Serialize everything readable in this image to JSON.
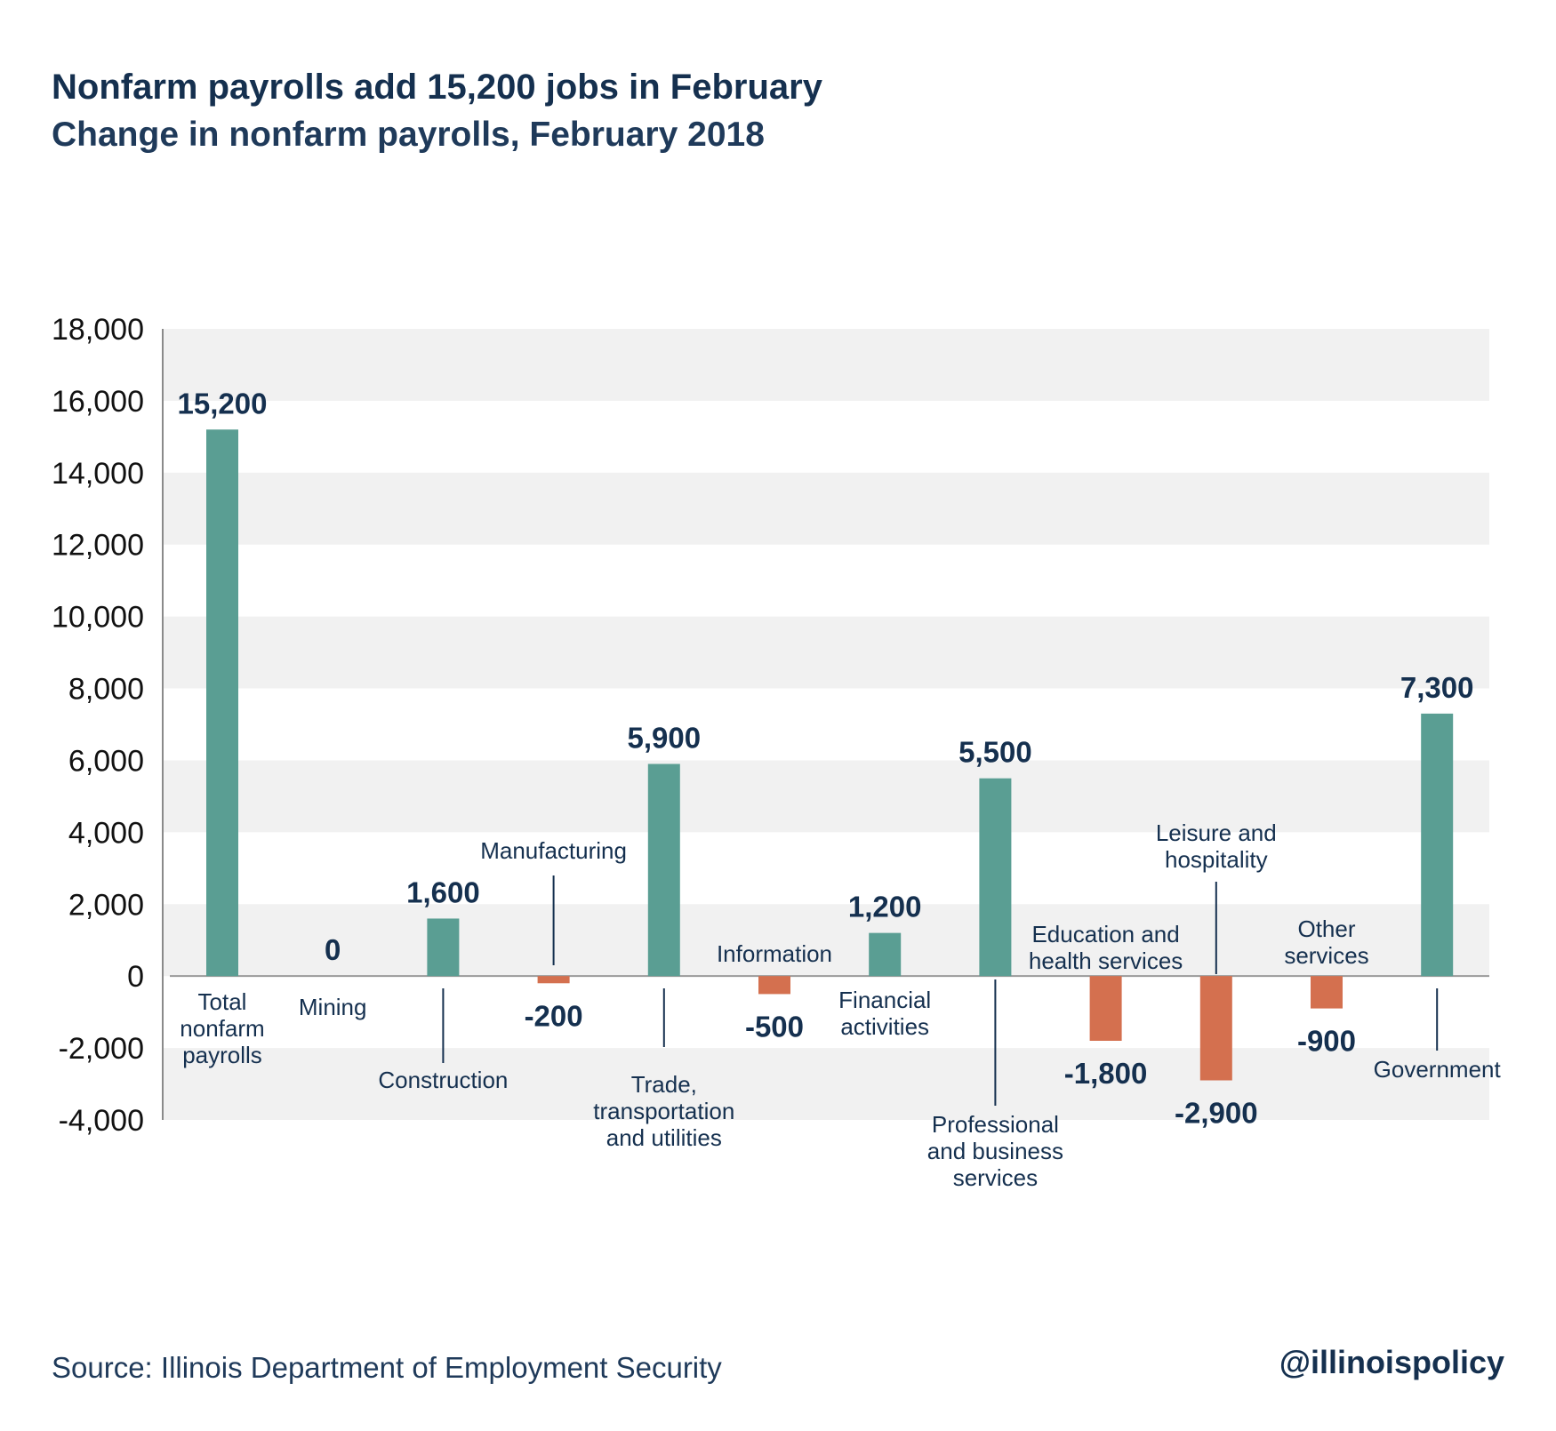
{
  "header": {
    "title": "Nonfarm payrolls add 15,200 jobs in February",
    "subtitle": "Change in nonfarm payrolls, February 2018"
  },
  "footer": {
    "source": "Source: Illinois Department of Employment Security",
    "handle": "@illinoispolicy"
  },
  "colors": {
    "positive": "#5a9e93",
    "negative": "#d4704f",
    "band": "#f1f1f1",
    "text": "#15304f"
  },
  "chart_data": {
    "type": "bar",
    "title": "Nonfarm payrolls add 15,200 jobs in February",
    "subtitle": "Change in nonfarm payrolls, February 2018",
    "ylim": [
      -4000,
      18000
    ],
    "yticks": [
      18000,
      16000,
      14000,
      12000,
      10000,
      8000,
      6000,
      4000,
      2000,
      0,
      -2000,
      -4000
    ],
    "ytick_labels": [
      "18,000",
      "16,000",
      "14,000",
      "12,000",
      "10,000",
      "8,000",
      "6,000",
      "4,000",
      "2,000",
      "0",
      "-2,000",
      "-4,000"
    ],
    "grid": "alternating horizontal bands",
    "categories": [
      "Total nonfarm payrolls",
      "Mining",
      "Construction",
      "Manufacturing",
      "Trade, transportation and utilities",
      "Information",
      "Financial activities",
      "Professional and business services",
      "Education and health services",
      "Leisure and hospitality",
      "Other services",
      "Government"
    ],
    "category_label_lines": [
      [
        "Total",
        "nonfarm",
        "payrolls"
      ],
      [
        "Mining"
      ],
      [
        "Construction"
      ],
      [
        "Manufacturing"
      ],
      [
        "Trade,",
        "transportation",
        "and utilities"
      ],
      [
        "Information"
      ],
      [
        "Financial",
        "activities"
      ],
      [
        "Professional",
        "and business",
        "services"
      ],
      [
        "Education and",
        "health services"
      ],
      [
        "Leisure and",
        "hospitality"
      ],
      [
        "Other",
        "services"
      ],
      [
        "Government"
      ]
    ],
    "values": [
      15200,
      0,
      1600,
      -200,
      5900,
      -500,
      1200,
      5500,
      -1800,
      -2900,
      -900,
      7300
    ],
    "value_labels": [
      "15,200",
      "0",
      "1,600",
      "-200",
      "5,900",
      "-500",
      "1,200",
      "5,500",
      "-1,800",
      "-2,900",
      "-900",
      "7,300"
    ]
  }
}
